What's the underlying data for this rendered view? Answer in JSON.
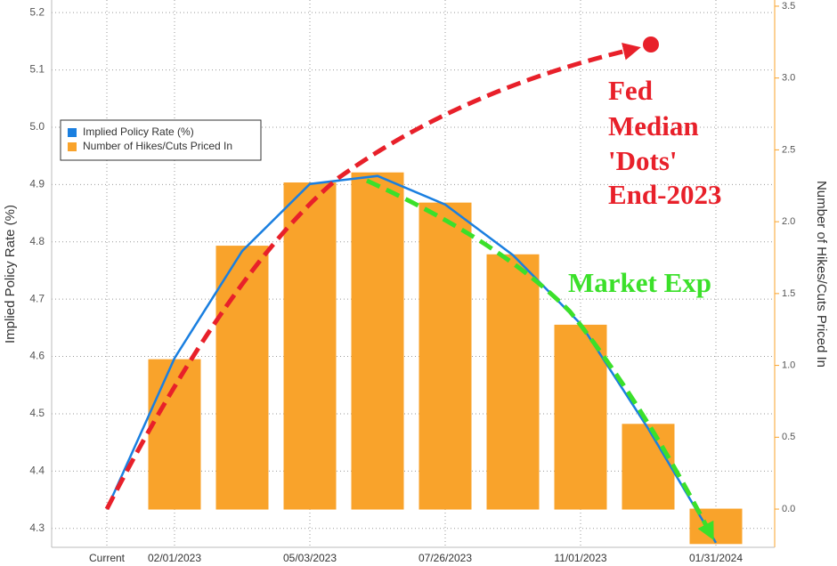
{
  "chart_data": {
    "type": "bar_line",
    "categories": [
      "Current",
      "02/01/2023",
      null,
      "05/03/2023",
      null,
      "07/26/2023",
      null,
      "11/01/2023",
      null,
      "01/31/2024"
    ],
    "series": [
      {
        "name": "Implied Policy Rate (%)",
        "color": "#1a7fe0",
        "type": "line",
        "axis": "y",
        "values": [
          4.334,
          4.597,
          4.784,
          4.901,
          4.915,
          4.865,
          4.777,
          4.657,
          4.474,
          4.275
        ]
      },
      {
        "name": "Number of Hikes/Cuts Priced In",
        "color": "#f9a32b",
        "type": "bar",
        "axis": "y2",
        "values": [
          0.0,
          1.04,
          1.83,
          2.27,
          2.34,
          2.13,
          1.77,
          1.28,
          0.59,
          -0.24
        ]
      }
    ],
    "ylabel": "Implied Policy Rate (%)",
    "y2label": "Number of Hikes/Cuts Priced In",
    "ylim": [
      4.267,
      5.222
    ],
    "yticks": [
      4.3,
      4.4,
      4.5,
      4.6,
      4.7,
      4.8,
      4.9,
      {
        "value": 5.0,
        "label": "5.0"
      },
      5.1,
      5.2
    ],
    "y2lim": [
      -0.266,
      3.543
    ],
    "y2ticks": [
      {
        "value": 0,
        "label": "0.0"
      },
      0.5,
      {
        "value": 1,
        "label": "1.0"
      },
      1.5,
      {
        "value": 2,
        "label": "2.0"
      },
      2.5,
      {
        "value": 3,
        "label": "3.0"
      },
      3.5
    ],
    "annotations": [
      "Fed",
      "Median",
      "'Dots'",
      "End-2023",
      "Market Exp"
    ],
    "grid": true,
    "legend": "upper left"
  }
}
